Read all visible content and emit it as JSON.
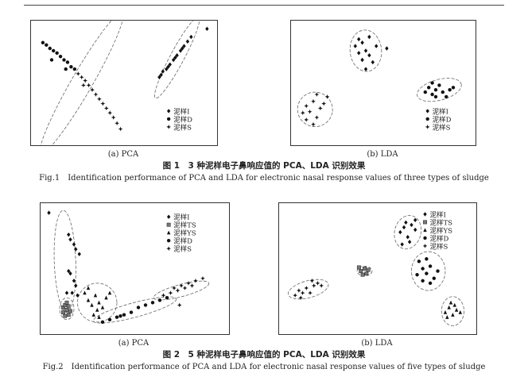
{
  "figures": [
    {
      "caption_cn": "图 1　3 种泥样电子鼻响应值的 PCA、LDA 识别效果",
      "caption_en": "Fig.1　Identification performance of PCA and LDA for electronic nasal response values of three types of sludge"
    },
    {
      "caption_cn": "图 2　5 种泥样电子鼻响应值的 PCA、LDA 识别效果",
      "caption_en": "Fig.2　Identification performance of PCA and LDA for electronic nasal response values of five types of sludge"
    }
  ],
  "chart_data": [
    {
      "type": "scatter",
      "subtitle": "(a) PCA",
      "xlim": [
        0,
        100
      ],
      "ylim": [
        0,
        100
      ],
      "grid": false,
      "legend": "bottom-right",
      "series": [
        {
          "name": "泥样I",
          "marker": "diamond",
          "points": [
            [
              70,
              55
            ],
            [
              72,
              60
            ],
            [
              74,
              62
            ],
            [
              76,
              66
            ],
            [
              78,
              70
            ],
            [
              80,
              74
            ],
            [
              82,
              78
            ],
            [
              84,
              82
            ],
            [
              86,
              86
            ],
            [
              88,
              90
            ],
            [
              75,
              64
            ],
            [
              79,
              72
            ],
            [
              83,
              80
            ],
            [
              71,
              57
            ],
            [
              97,
              97
            ]
          ]
        },
        {
          "name": "泥样D",
          "marker": "circle",
          "points": [
            [
              4,
              85
            ],
            [
              6,
              83
            ],
            [
              8,
              80
            ],
            [
              10,
              78
            ],
            [
              12,
              76
            ],
            [
              14,
              73
            ],
            [
              9,
              70
            ],
            [
              16,
              70
            ],
            [
              18,
              68
            ],
            [
              20,
              64
            ],
            [
              17,
              62
            ],
            [
              22,
              62
            ]
          ]
        },
        {
          "name": "泥样S",
          "marker": "star",
          "points": [
            [
              24,
              58
            ],
            [
              26,
              55
            ],
            [
              28,
              52
            ],
            [
              30,
              48
            ],
            [
              32,
              44
            ],
            [
              34,
              40
            ],
            [
              36,
              36
            ],
            [
              38,
              32
            ],
            [
              40,
              28
            ],
            [
              42,
              24
            ],
            [
              44,
              20
            ],
            [
              46,
              15
            ],
            [
              48,
              10
            ],
            [
              27,
              48
            ]
          ]
        }
      ]
    },
    {
      "type": "scatter",
      "subtitle": "(b) LDA",
      "xlim": [
        0,
        100
      ],
      "ylim": [
        0,
        100
      ],
      "grid": false,
      "legend": "bottom-right",
      "series": [
        {
          "name": "泥样I",
          "marker": "diamond",
          "points": [
            [
              34,
              82
            ],
            [
              36,
              88
            ],
            [
              38,
              85
            ],
            [
              40,
              78
            ],
            [
              42,
              74
            ],
            [
              38,
              70
            ],
            [
              44,
              68
            ],
            [
              40,
              62
            ],
            [
              36,
              76
            ],
            [
              46,
              82
            ],
            [
              42,
              90
            ],
            [
              52,
              80
            ]
          ]
        },
        {
          "name": "泥样D",
          "marker": "circle",
          "points": [
            [
              74,
              42
            ],
            [
              76,
              46
            ],
            [
              78,
              40
            ],
            [
              80,
              44
            ],
            [
              82,
              48
            ],
            [
              84,
              42
            ],
            [
              86,
              38
            ],
            [
              88,
              44
            ],
            [
              80,
              38
            ],
            [
              90,
              46
            ],
            [
              78,
              50
            ]
          ]
        },
        {
          "name": "泥样S",
          "marker": "star",
          "points": [
            [
              6,
              30
            ],
            [
              8,
              25
            ],
            [
              10,
              34
            ],
            [
              12,
              20
            ],
            [
              14,
              28
            ],
            [
              6,
              18
            ],
            [
              16,
              32
            ],
            [
              10,
              14
            ],
            [
              4,
              24
            ],
            [
              18,
              38
            ],
            [
              12,
              40
            ]
          ]
        }
      ]
    },
    {
      "type": "scatter",
      "subtitle": "(a) PCA",
      "xlim": [
        0,
        100
      ],
      "ylim": [
        0,
        100
      ],
      "grid": false,
      "legend": "top-right",
      "series": [
        {
          "name": "泥样I",
          "marker": "diamond",
          "points": [
            [
              2,
              96
            ],
            [
              13,
              78
            ],
            [
              14,
              74
            ],
            [
              16,
              70
            ],
            [
              17,
              66
            ],
            [
              19,
              62
            ],
            [
              13,
              48
            ],
            [
              14,
              46
            ],
            [
              16,
              40
            ],
            [
              17,
              36
            ],
            [
              15,
              30
            ],
            [
              18,
              28
            ],
            [
              12,
              30
            ]
          ]
        },
        {
          "name": "泥样TS",
          "marker": "square",
          "points": [
            [
              10,
              18
            ],
            [
              11,
              20
            ],
            [
              12,
              16
            ],
            [
              13,
              19
            ],
            [
              12,
              22
            ],
            [
              10,
              14
            ],
            [
              13,
              12
            ],
            [
              11,
              11
            ],
            [
              14,
              15
            ]
          ]
        },
        {
          "name": "泥样YS",
          "marker": "triangle",
          "points": [
            [
              22,
              30
            ],
            [
              24,
              24
            ],
            [
              26,
              20
            ],
            [
              28,
              28
            ],
            [
              30,
              22
            ],
            [
              32,
              18
            ],
            [
              34,
              26
            ],
            [
              27,
              12
            ],
            [
              30,
              10
            ],
            [
              36,
              30
            ],
            [
              24,
              34
            ],
            [
              29,
              16
            ]
          ]
        },
        {
          "name": "泥样D",
          "marker": "circle",
          "points": [
            [
              32,
              6
            ],
            [
              36,
              8
            ],
            [
              40,
              10
            ],
            [
              44,
              12
            ],
            [
              48,
              14
            ],
            [
              52,
              18
            ],
            [
              56,
              20
            ],
            [
              60,
              22
            ],
            [
              64,
              24
            ],
            [
              68,
              26
            ],
            [
              42,
              11
            ]
          ]
        },
        {
          "name": "泥样S",
          "marker": "star",
          "points": [
            [
              66,
              28
            ],
            [
              70,
              30
            ],
            [
              72,
              34
            ],
            [
              74,
              32
            ],
            [
              76,
              36
            ],
            [
              78,
              34
            ],
            [
              80,
              38
            ],
            [
              84,
              40
            ],
            [
              88,
              42
            ],
            [
              82,
              36
            ],
            [
              75,
              20
            ]
          ]
        }
      ]
    },
    {
      "type": "scatter",
      "subtitle": "(b) LDA",
      "xlim": [
        0,
        100
      ],
      "ylim": [
        0,
        100
      ],
      "grid": false,
      "legend": "top-right",
      "series": [
        {
          "name": "泥样I",
          "marker": "diamond",
          "points": [
            [
              62,
              80
            ],
            [
              64,
              84
            ],
            [
              66,
              76
            ],
            [
              68,
              86
            ],
            [
              70,
              82
            ],
            [
              63,
              70
            ],
            [
              67,
              72
            ],
            [
              65,
              88
            ],
            [
              70,
              90
            ]
          ]
        },
        {
          "name": "泥样TS",
          "marker": "square",
          "points": [
            [
              41,
              48
            ],
            [
              43,
              50
            ],
            [
              44,
              46
            ],
            [
              42,
              45
            ],
            [
              45,
              49
            ],
            [
              40,
              51
            ]
          ]
        },
        {
          "name": "泥样YS",
          "marker": "triangle",
          "points": [
            [
              86,
              14
            ],
            [
              88,
              18
            ],
            [
              90,
              12
            ],
            [
              92,
              16
            ],
            [
              89,
              22
            ],
            [
              87,
              10
            ],
            [
              94,
              14
            ],
            [
              91,
              20
            ]
          ]
        },
        {
          "name": "泥样D",
          "marker": "circle",
          "points": [
            [
              72,
              56
            ],
            [
              74,
              50
            ],
            [
              76,
              46
            ],
            [
              78,
              52
            ],
            [
              80,
              42
            ],
            [
              74,
              40
            ],
            [
              78,
              38
            ],
            [
              82,
              48
            ],
            [
              71,
              45
            ],
            [
              76,
              58
            ]
          ]
        },
        {
          "name": "泥样S",
          "marker": "star",
          "points": [
            [
              6,
              28
            ],
            [
              8,
              32
            ],
            [
              10,
              30
            ],
            [
              12,
              34
            ],
            [
              14,
              30
            ],
            [
              16,
              36
            ],
            [
              18,
              38
            ],
            [
              20,
              36
            ],
            [
              9,
              26
            ],
            [
              15,
              40
            ]
          ]
        }
      ]
    }
  ]
}
